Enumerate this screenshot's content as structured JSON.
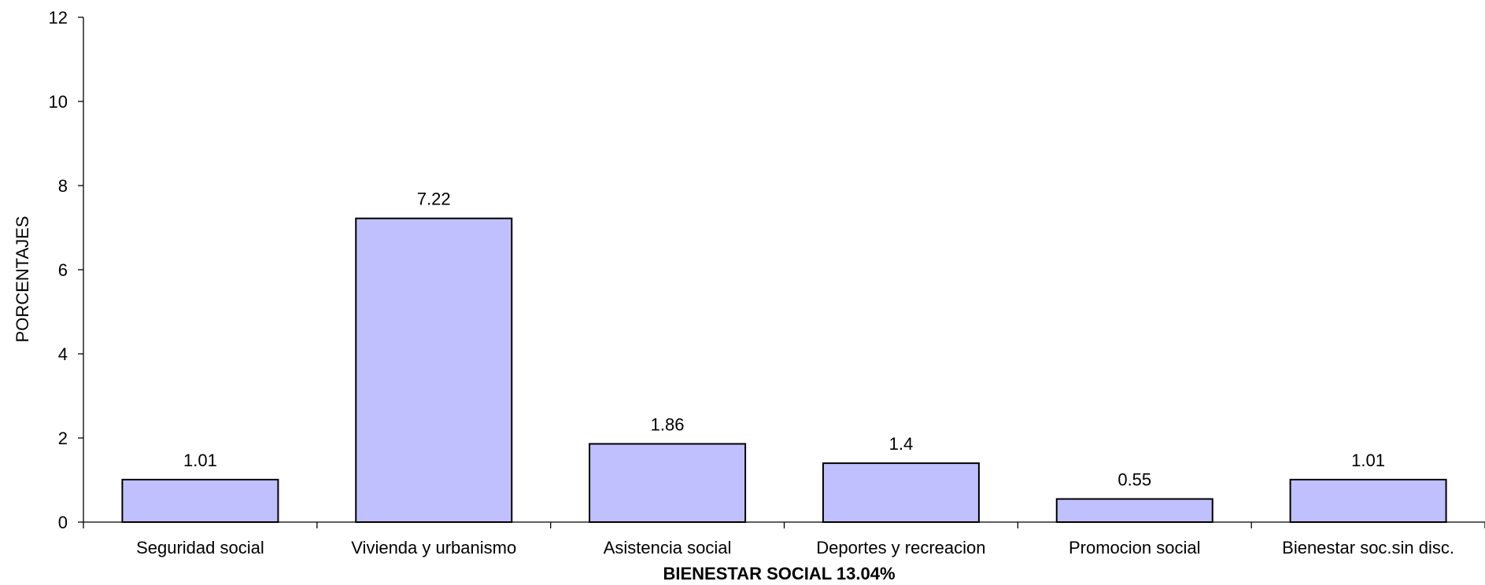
{
  "chart_data": {
    "type": "bar",
    "categories": [
      "Seguridad social",
      "Vivienda y urbanismo",
      "Asistencia social",
      "Deportes y recreacion",
      "Promocion social",
      "Bienestar soc.sin disc."
    ],
    "values": [
      1.01,
      7.22,
      1.86,
      1.4,
      0.55,
      1.01
    ],
    "data_labels": [
      "1.01",
      "7.22",
      "1.86",
      "1.4",
      "0.55",
      "1.01"
    ],
    "xlabel": "BIENESTAR SOCIAL 13.04%",
    "ylabel": "PORCENTAJES",
    "ylim": [
      0,
      12
    ],
    "yticks": [
      "0",
      "2",
      "4",
      "6",
      "8",
      "10",
      "12"
    ],
    "grid": false,
    "colors": {
      "bar_fill": "#c0c0ff",
      "bar_stroke": "#000000",
      "axis": "#000000"
    }
  }
}
